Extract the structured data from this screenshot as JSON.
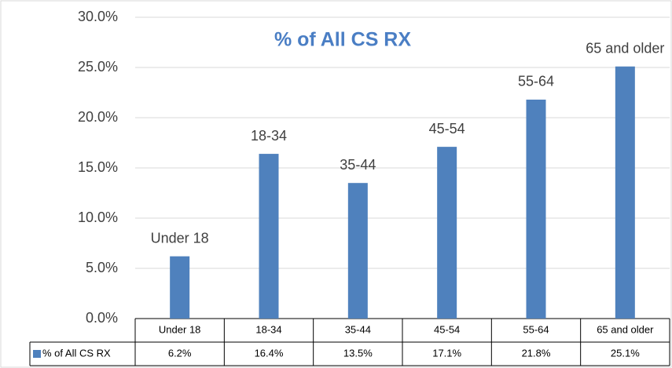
{
  "chart_data": {
    "type": "bar",
    "title": "% of All CS RX",
    "categories": [
      "Under 18",
      "18-34",
      "35-44",
      "45-54",
      "55-64",
      "65 and older"
    ],
    "series": [
      {
        "name": "% of All CS RX",
        "color": "#4f81bd",
        "values": [
          6.2,
          16.4,
          13.5,
          17.1,
          21.8,
          25.1
        ],
        "value_labels": [
          "6.2%",
          "16.4%",
          "13.5%",
          "17.1%",
          "21.8%",
          "25.1%"
        ]
      }
    ],
    "ylim": [
      0,
      30
    ],
    "yticks": [
      {
        "value": 0,
        "label": "0.0%"
      },
      {
        "value": 5,
        "label": "5.0%"
      },
      {
        "value": 10,
        "label": "10.0%"
      },
      {
        "value": 15,
        "label": "15.0%"
      },
      {
        "value": 20,
        "label": "20.0%"
      },
      {
        "value": 25,
        "label": "25.0%"
      },
      {
        "value": 30,
        "label": "30.0%"
      }
    ],
    "grid": true
  }
}
